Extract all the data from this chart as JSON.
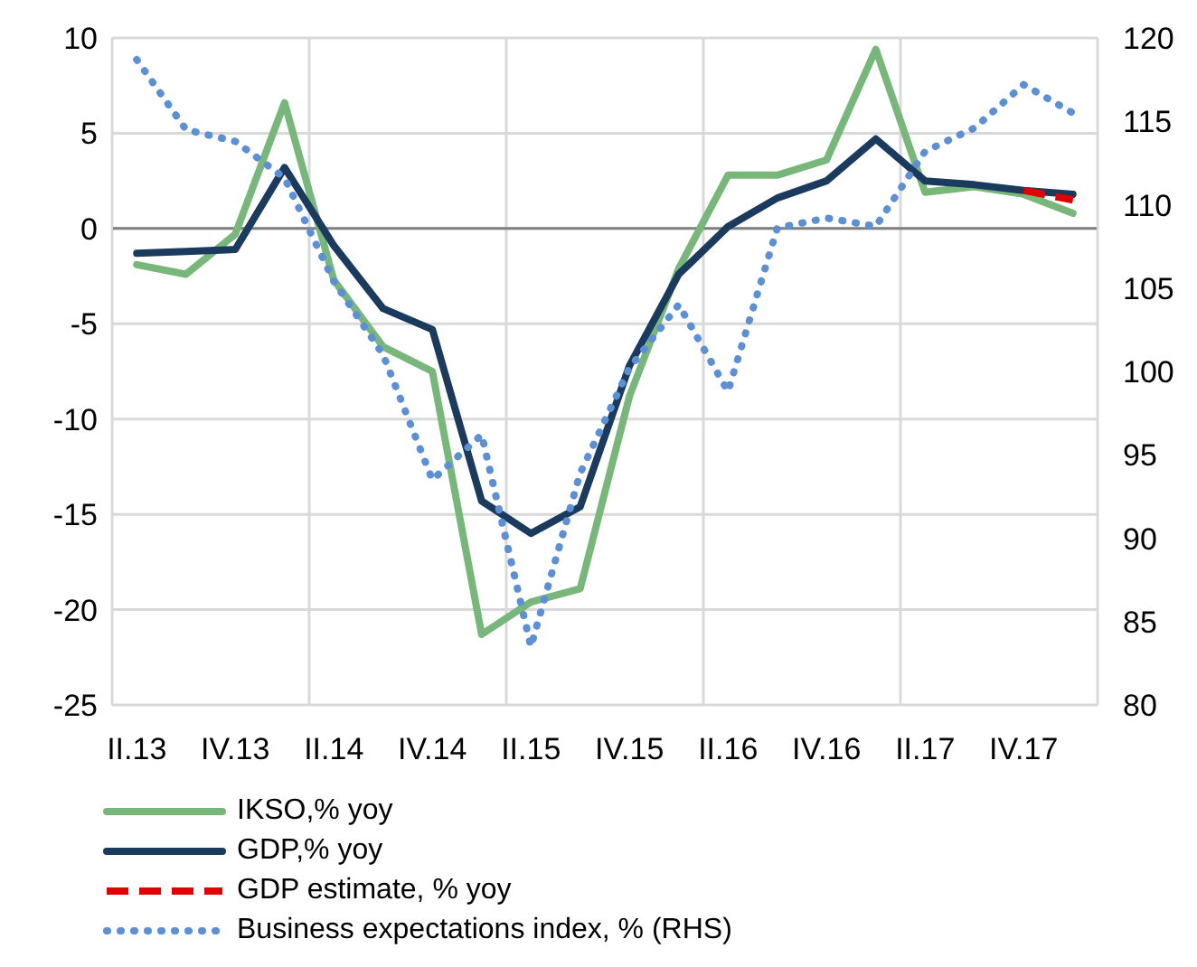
{
  "chart_data": {
    "type": "line",
    "categories": [
      "II.13",
      null,
      "IV.13",
      null,
      "II.14",
      null,
      "IV.14",
      null,
      "II.15",
      null,
      "IV.15",
      null,
      "II.16",
      null,
      "IV.16",
      null,
      "II.17",
      null,
      "IV.17",
      null
    ],
    "series": [
      {
        "name": "IKSO,% yoy",
        "color": "#77b77a",
        "line_style": "solid",
        "values": [
          -1.9,
          -2.4,
          -0.3,
          6.6,
          -2.7,
          -6.2,
          -7.5,
          -21.3,
          -19.6,
          -18.9,
          -8.8,
          -2.1,
          2.8,
          2.8,
          3.6,
          9.4,
          1.9,
          2.2,
          1.8,
          0.8
        ]
      },
      {
        "name": "GDP,% yoy",
        "color": "#1a3a5e",
        "line_style": "solid",
        "values": [
          -1.3,
          -1.2,
          -1.1,
          3.2,
          -0.9,
          -4.2,
          -5.3,
          -14.3,
          -16.0,
          -14.6,
          -7.2,
          -2.4,
          0.1,
          1.6,
          2.5,
          4.7,
          2.5,
          2.3,
          2.0,
          1.8
        ]
      },
      {
        "name": "GDP estimate, % yoy",
        "color": "#e00000",
        "line_style": "dashed",
        "values": [
          null,
          null,
          null,
          null,
          null,
          null,
          null,
          null,
          null,
          null,
          null,
          null,
          null,
          null,
          null,
          null,
          null,
          null,
          2.0,
          1.5
        ]
      },
      {
        "name": "Business expectations index, % (RHS)",
        "color": "#5b8fd6",
        "line_style": "dotted",
        "axis": "y2",
        "values": [
          118.7,
          114.5,
          113.8,
          111.6,
          105.4,
          101.0,
          93.5,
          96.2,
          83.5,
          93.9,
          100.2,
          104.0,
          98.8,
          108.6,
          109.2,
          108.7,
          113.2,
          114.6,
          117.2,
          115.5
        ]
      }
    ],
    "ylim": [
      -25,
      10
    ],
    "yticks": [
      -25,
      -20,
      -15,
      -10,
      -5,
      0,
      5,
      10
    ],
    "y2lim": [
      80,
      120
    ],
    "y2ticks": [
      80,
      85,
      90,
      95,
      100,
      105,
      110,
      115,
      120
    ],
    "ref_lines": [
      {
        "axis": "y",
        "value": 0,
        "color": "#808080"
      }
    ],
    "grid": true,
    "legend": "bottom",
    "marker": "none"
  }
}
